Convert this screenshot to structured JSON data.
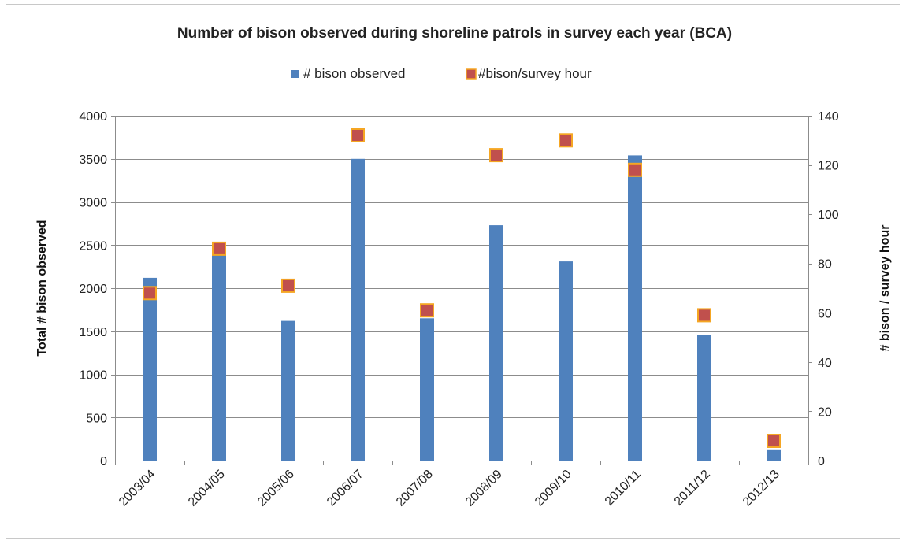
{
  "chart_data": {
    "type": "bar",
    "title": "Number of bison observed during shoreline patrols in survey each year (BCA)",
    "categories": [
      "2003/04",
      "2004/05",
      "2005/06",
      "2006/07",
      "2007/08",
      "2008/09",
      "2009/10",
      "2010/11",
      "2011/12",
      "2012/13"
    ],
    "series": [
      {
        "name": "# bison observed",
        "axis": "left",
        "mark": "bar",
        "color": "#4f81bd",
        "values": [
          2120,
          2380,
          1620,
          3500,
          1650,
          2730,
          2310,
          3540,
          1460,
          130
        ]
      },
      {
        "name": "#bison/survey hour",
        "axis": "right",
        "mark": "square-marker",
        "color": "#c0504d",
        "edge_color": "#f5a623",
        "values": [
          68,
          86,
          71,
          132,
          61,
          124,
          130,
          118,
          59,
          8
        ]
      }
    ],
    "y_left": {
      "label": "Total # bison observed",
      "range": [
        0,
        4000
      ],
      "ticks": [
        0,
        500,
        1000,
        1500,
        2000,
        2500,
        3000,
        3500,
        4000
      ]
    },
    "y_right": {
      "label": "# bison / survey hour",
      "range": [
        0,
        140
      ],
      "ticks": [
        0,
        20,
        40,
        60,
        80,
        100,
        120,
        140
      ]
    },
    "gridlines": true,
    "legend_position": "top-center"
  }
}
